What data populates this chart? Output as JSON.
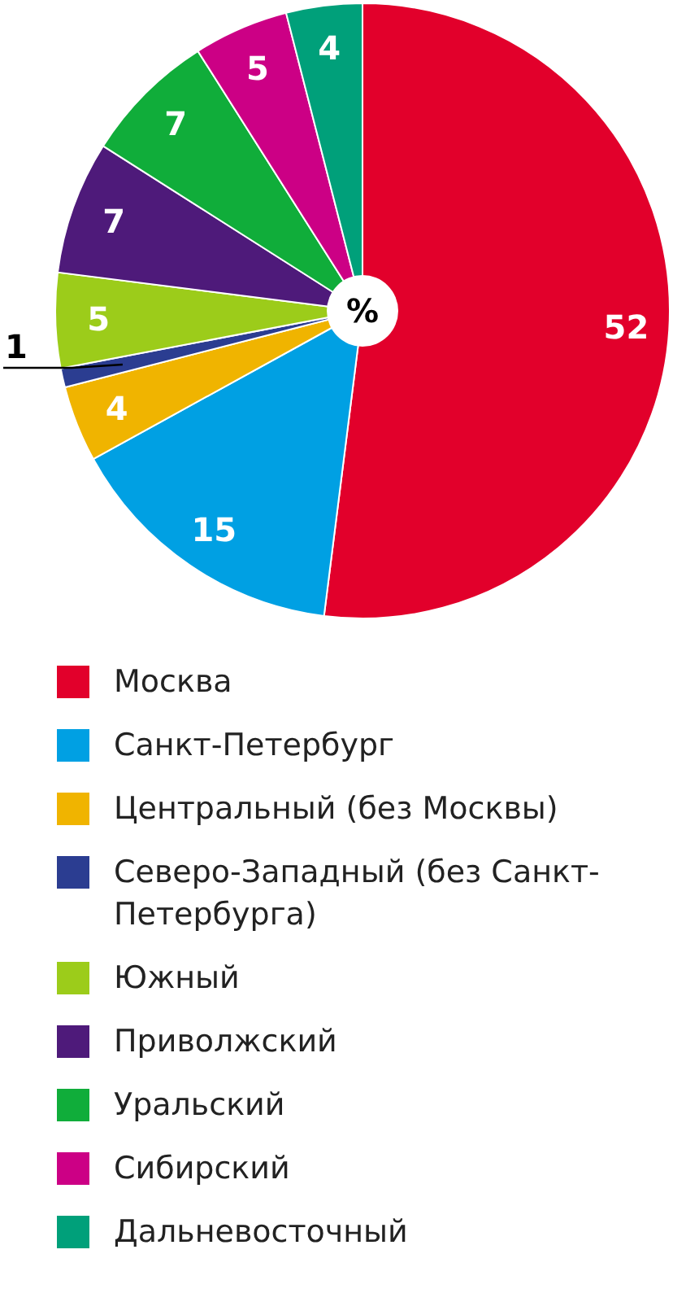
{
  "chart_data": {
    "type": "pie",
    "categories": [
      "Москва",
      "Санкт-Петербург",
      "Центральный (без Москвы)",
      "Северо-Западный (без Санкт-Петербурга)",
      "Южный",
      "Приволжский",
      "Уральский",
      "Сибирский",
      "Дальневосточный"
    ],
    "values": [
      52,
      15,
      4,
      1,
      5,
      7,
      7,
      5,
      4
    ],
    "colors": [
      "#e2002b",
      "#00a0e3",
      "#f0b400",
      "#2b3d91",
      "#9ccc1a",
      "#4e1a7a",
      "#10ad3a",
      "#cc0085",
      "#00a07a"
    ],
    "data_labels": true,
    "legend": "bottom",
    "annotations": [
      "%"
    ]
  }
}
